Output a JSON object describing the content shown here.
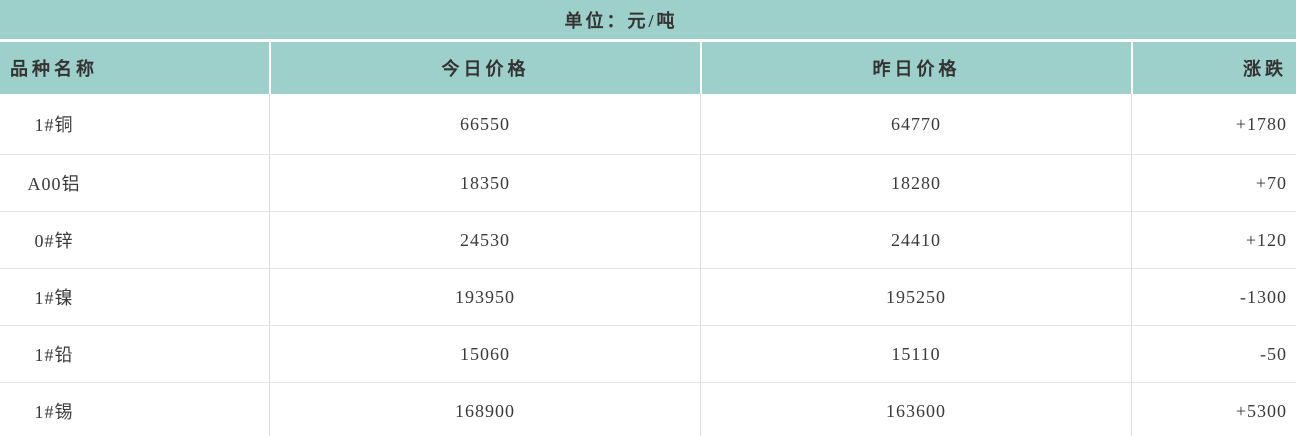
{
  "unit_label": "单位：元/吨",
  "table": {
    "columns": [
      {
        "label": "品种名称"
      },
      {
        "label": "今日价格"
      },
      {
        "label": "昨日价格"
      },
      {
        "label": "涨跌"
      }
    ],
    "rows": [
      {
        "name": "1#铜",
        "today": "66550",
        "yesterday": "64770",
        "change": "+1780"
      },
      {
        "name": "A00铝",
        "today": "18350",
        "yesterday": "18280",
        "change": "+70"
      },
      {
        "name": "0#锌",
        "today": "24530",
        "yesterday": "24410",
        "change": "+120"
      },
      {
        "name": "1#镍",
        "today": "193950",
        "yesterday": "195250",
        "change": "-1300"
      },
      {
        "name": "1#铅",
        "today": "15060",
        "yesterday": "15110",
        "change": "-50"
      },
      {
        "name": "1#锡",
        "today": "168900",
        "yesterday": "163600",
        "change": "+5300"
      }
    ]
  },
  "colors": {
    "header_bg": "#9dcfcb",
    "text_dark": "#333333",
    "row_border": "#e4e4e4",
    "column_divider": "#dcdcdc",
    "row_bg": "#ffffff"
  },
  "chart_data": {
    "type": "table",
    "title": "单位：元/吨",
    "columns": [
      "品种名称",
      "今日价格",
      "昨日价格",
      "涨跌"
    ],
    "rows": [
      [
        "1#铜",
        66550,
        64770,
        "+1780"
      ],
      [
        "A00铝",
        18350,
        18280,
        "+70"
      ],
      [
        "0#锌",
        24530,
        24410,
        "+120"
      ],
      [
        "1#镍",
        193950,
        195250,
        "-1300"
      ],
      [
        "1#铅",
        15060,
        15110,
        "-50"
      ],
      [
        "1#锡",
        168900,
        163600,
        "+5300"
      ]
    ]
  }
}
